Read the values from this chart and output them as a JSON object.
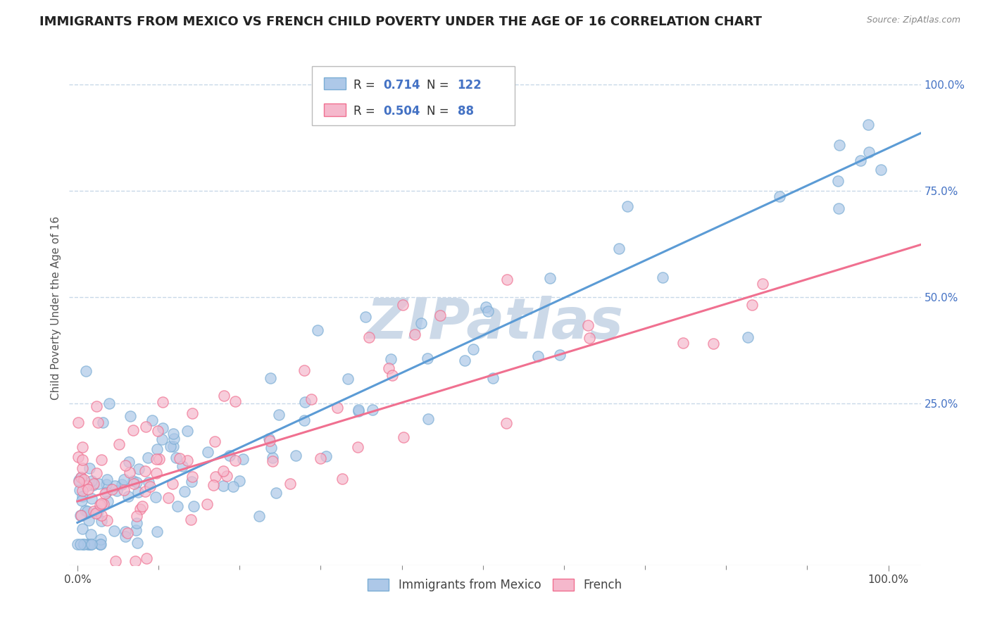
{
  "title": "IMMIGRANTS FROM MEXICO VS FRENCH CHILD POVERTY UNDER THE AGE OF 16 CORRELATION CHART",
  "source": "Source: ZipAtlas.com",
  "ylabel": "Child Poverty Under the Age of 16",
  "x_tick_labels": [
    "0.0%",
    "100.0%"
  ],
  "x_tick_vals": [
    0.0,
    1.0
  ],
  "y_tick_labels": [
    "25.0%",
    "50.0%",
    "75.0%",
    "100.0%"
  ],
  "y_tick_vals": [
    0.25,
    0.5,
    0.75,
    1.0
  ],
  "legend_label1": "Immigrants from Mexico",
  "legend_label2": "French",
  "R1": 0.714,
  "N1": 122,
  "R2": 0.504,
  "N2": 88,
  "blue_face_color": "#adc8e8",
  "blue_edge_color": "#7aadd4",
  "pink_face_color": "#f5b8cc",
  "pink_edge_color": "#f07090",
  "blue_line_color": "#5b9bd5",
  "pink_line_color": "#f07090",
  "legend_text_color": "#4472c4",
  "legend_r_label_color": "#333333",
  "watermark_color": "#ccd9e8",
  "background_color": "#ffffff",
  "grid_color": "#c8d8e8",
  "title_fontsize": 13,
  "axis_label_fontsize": 11,
  "tick_fontsize": 11,
  "seed": 42,
  "blue_intercept": -0.03,
  "blue_slope": 0.88,
  "pink_intercept": 0.02,
  "pink_slope": 0.58
}
